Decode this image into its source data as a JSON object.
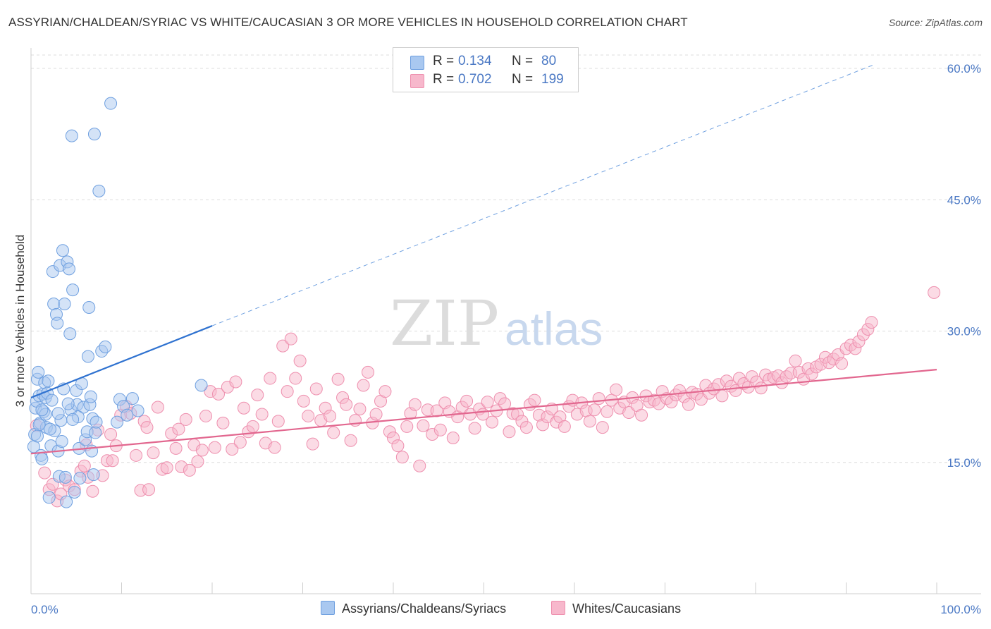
{
  "title": "ASSYRIAN/CHALDEAN/SYRIAC VS WHITE/CAUCASIAN 3 OR MORE VEHICLES IN HOUSEHOLD CORRELATION CHART",
  "source": "Source: ZipAtlas.com",
  "watermark": {
    "zip": "ZIP",
    "atlas": "atlas"
  },
  "legend": {
    "rows": [
      {
        "r_label": "R =",
        "r_value": "0.134",
        "n_label": "N =",
        "n_value": "80",
        "color": "#a9c8f0"
      },
      {
        "r_label": "R =",
        "r_value": "0.702",
        "n_label": "N =",
        "n_value": "199",
        "color": "#f7b8cc"
      }
    ]
  },
  "bottom_legend": [
    {
      "label": "Assyrians/Chaldeans/Syriacs",
      "color": "#a9c8f0"
    },
    {
      "label": "Whites/Caucasians",
      "color": "#f7b8cc"
    }
  ],
  "chart_data": {
    "type": "scatter",
    "xlabel": "",
    "ylabel": "3 or more Vehicles in Household",
    "xlim": [
      0,
      100
    ],
    "ylim": [
      0,
      63
    ],
    "x_tick_labels": [
      {
        "value": 0,
        "label": "0.0%"
      },
      {
        "value": 100,
        "label": "100.0%"
      }
    ],
    "y_ticks": [
      {
        "value": 15,
        "label": "15.0%"
      },
      {
        "value": 30,
        "label": "30.0%"
      },
      {
        "value": 45,
        "label": "45.0%"
      },
      {
        "value": 60,
        "label": "60.0%"
      }
    ],
    "grid": "horizontal dashed",
    "legend_position": "top-center",
    "series": [
      {
        "color": "#6fa0e0",
        "fill": "#a9c8f0",
        "trend": {
          "x": [
            0,
            20
          ],
          "y": [
            22.4,
            30.6
          ],
          "extend_dashed_to": [
            93,
            60.4
          ]
        },
        "points": [
          [
            0.3,
            16.8
          ],
          [
            0.5,
            21.2
          ],
          [
            0.6,
            22.0
          ],
          [
            0.7,
            24.5
          ],
          [
            0.8,
            25.3
          ],
          [
            0.9,
            22.6
          ],
          [
            1.0,
            19.5
          ],
          [
            1.1,
            15.8
          ],
          [
            1.2,
            15.4
          ],
          [
            1.3,
            22.8
          ],
          [
            1.4,
            20.8
          ],
          [
            1.5,
            24.1
          ],
          [
            1.6,
            22.4
          ],
          [
            1.7,
            19.0
          ],
          [
            1.8,
            22.9
          ],
          [
            2.0,
            11.0
          ],
          [
            2.2,
            16.9
          ],
          [
            2.4,
            36.8
          ],
          [
            2.5,
            33.1
          ],
          [
            2.6,
            18.6
          ],
          [
            2.8,
            31.9
          ],
          [
            2.9,
            30.9
          ],
          [
            3.0,
            16.3
          ],
          [
            3.1,
            13.4
          ],
          [
            3.2,
            37.5
          ],
          [
            3.3,
            19.8
          ],
          [
            3.5,
            39.2
          ],
          [
            3.6,
            23.4
          ],
          [
            3.7,
            33.1
          ],
          [
            3.8,
            13.3
          ],
          [
            3.9,
            10.5
          ],
          [
            4.0,
            37.9
          ],
          [
            4.2,
            37.1
          ],
          [
            4.3,
            29.7
          ],
          [
            4.4,
            21.0
          ],
          [
            4.5,
            52.3
          ],
          [
            4.6,
            34.7
          ],
          [
            4.8,
            11.6
          ],
          [
            5.0,
            23.2
          ],
          [
            5.1,
            21.6
          ],
          [
            5.3,
            16.6
          ],
          [
            5.4,
            13.2
          ],
          [
            5.6,
            24.0
          ],
          [
            5.8,
            21.3
          ],
          [
            6.0,
            17.6
          ],
          [
            6.2,
            18.5
          ],
          [
            6.3,
            27.1
          ],
          [
            6.4,
            32.7
          ],
          [
            6.5,
            21.6
          ],
          [
            6.7,
            16.3
          ],
          [
            6.8,
            20.0
          ],
          [
            6.9,
            13.6
          ],
          [
            7.0,
            52.5
          ],
          [
            7.1,
            18.4
          ],
          [
            7.2,
            19.6
          ],
          [
            7.5,
            46.0
          ],
          [
            7.8,
            27.7
          ],
          [
            8.2,
            28.2
          ],
          [
            8.8,
            56.0
          ],
          [
            9.5,
            19.6
          ],
          [
            9.8,
            22.2
          ],
          [
            10.2,
            21.4
          ],
          [
            10.6,
            20.4
          ],
          [
            11.2,
            22.3
          ],
          [
            11.8,
            20.9
          ],
          [
            0.4,
            18.2
          ],
          [
            0.9,
            19.3
          ],
          [
            1.6,
            20.5
          ],
          [
            2.3,
            22.1
          ],
          [
            3.4,
            17.4
          ],
          [
            4.1,
            21.7
          ],
          [
            2.1,
            18.8
          ],
          [
            1.2,
            21.0
          ],
          [
            5.2,
            20.2
          ],
          [
            6.6,
            22.5
          ],
          [
            0.7,
            18.0
          ],
          [
            1.9,
            24.3
          ],
          [
            3.0,
            20.6
          ],
          [
            4.6,
            19.9
          ],
          [
            18.8,
            23.8
          ]
        ]
      },
      {
        "color": "#ee8fae",
        "fill": "#f7b8cc",
        "trend": {
          "x": [
            0,
            100
          ],
          "y": [
            16.0,
            25.6
          ]
        },
        "points": [
          [
            0.6,
            19.2
          ],
          [
            1.5,
            13.8
          ],
          [
            2.0,
            11.9
          ],
          [
            2.4,
            12.5
          ],
          [
            2.9,
            10.6
          ],
          [
            3.3,
            11.4
          ],
          [
            3.8,
            13.0
          ],
          [
            4.2,
            12.3
          ],
          [
            4.8,
            11.9
          ],
          [
            5.5,
            14.0
          ],
          [
            5.9,
            14.6
          ],
          [
            6.3,
            13.3
          ],
          [
            6.8,
            11.7
          ],
          [
            7.4,
            18.7
          ],
          [
            7.9,
            13.5
          ],
          [
            8.4,
            15.2
          ],
          [
            9.0,
            15.2
          ],
          [
            9.4,
            16.9
          ],
          [
            9.9,
            20.4
          ],
          [
            10.5,
            21.4
          ],
          [
            11.0,
            20.6
          ],
          [
            11.6,
            15.8
          ],
          [
            12.1,
            11.8
          ],
          [
            12.5,
            19.7
          ],
          [
            13.0,
            11.9
          ],
          [
            13.5,
            16.1
          ],
          [
            14.0,
            21.3
          ],
          [
            14.5,
            14.2
          ],
          [
            15.0,
            14.4
          ],
          [
            15.5,
            18.3
          ],
          [
            16.0,
            16.6
          ],
          [
            16.6,
            14.5
          ],
          [
            17.1,
            19.9
          ],
          [
            17.5,
            14.1
          ],
          [
            18.0,
            17.0
          ],
          [
            18.4,
            15.1
          ],
          [
            18.9,
            16.4
          ],
          [
            19.3,
            20.3
          ],
          [
            19.8,
            23.1
          ],
          [
            20.3,
            16.7
          ],
          [
            20.7,
            22.8
          ],
          [
            21.2,
            19.5
          ],
          [
            21.7,
            23.6
          ],
          [
            22.2,
            16.5
          ],
          [
            22.6,
            24.2
          ],
          [
            23.1,
            17.3
          ],
          [
            23.5,
            21.2
          ],
          [
            24.0,
            18.5
          ],
          [
            24.5,
            19.1
          ],
          [
            25.0,
            22.7
          ],
          [
            25.5,
            20.5
          ],
          [
            25.9,
            17.2
          ],
          [
            26.4,
            24.6
          ],
          [
            26.9,
            16.7
          ],
          [
            27.3,
            19.7
          ],
          [
            27.8,
            28.3
          ],
          [
            28.3,
            23.1
          ],
          [
            28.7,
            29.1
          ],
          [
            29.2,
            24.6
          ],
          [
            29.7,
            26.6
          ],
          [
            30.1,
            22.0
          ],
          [
            30.6,
            20.3
          ],
          [
            31.1,
            17.1
          ],
          [
            31.5,
            23.4
          ],
          [
            32.0,
            19.8
          ],
          [
            32.5,
            21.2
          ],
          [
            33.0,
            20.3
          ],
          [
            33.4,
            18.4
          ],
          [
            33.9,
            24.5
          ],
          [
            34.4,
            22.4
          ],
          [
            34.8,
            21.6
          ],
          [
            35.3,
            17.5
          ],
          [
            35.8,
            19.8
          ],
          [
            36.3,
            21.1
          ],
          [
            36.7,
            23.8
          ],
          [
            37.2,
            25.3
          ],
          [
            37.7,
            19.5
          ],
          [
            38.1,
            20.5
          ],
          [
            38.6,
            22.0
          ],
          [
            39.1,
            23.1
          ],
          [
            39.6,
            18.5
          ],
          [
            40.0,
            17.8
          ],
          [
            40.5,
            16.9
          ],
          [
            41.0,
            15.6
          ],
          [
            41.5,
            19.1
          ],
          [
            41.9,
            20.6
          ],
          [
            42.4,
            21.6
          ],
          [
            42.9,
            14.6
          ],
          [
            43.3,
            19.2
          ],
          [
            43.8,
            21.0
          ],
          [
            44.3,
            18.2
          ],
          [
            44.8,
            20.9
          ],
          [
            45.2,
            18.7
          ],
          [
            45.7,
            21.8
          ],
          [
            46.2,
            20.8
          ],
          [
            46.6,
            17.8
          ],
          [
            47.1,
            20.2
          ],
          [
            47.6,
            21.3
          ],
          [
            48.1,
            22.0
          ],
          [
            48.5,
            20.5
          ],
          [
            49.0,
            18.9
          ],
          [
            49.5,
            21.1
          ],
          [
            49.9,
            20.5
          ],
          [
            50.4,
            21.9
          ],
          [
            50.9,
            19.6
          ],
          [
            51.4,
            20.9
          ],
          [
            51.8,
            22.3
          ],
          [
            52.3,
            21.7
          ],
          [
            52.8,
            18.5
          ],
          [
            53.2,
            20.6
          ],
          [
            53.7,
            20.5
          ],
          [
            54.2,
            19.7
          ],
          [
            54.7,
            19.0
          ],
          [
            55.1,
            21.6
          ],
          [
            55.6,
            22.1
          ],
          [
            56.1,
            20.4
          ],
          [
            56.5,
            19.3
          ],
          [
            57.0,
            20.2
          ],
          [
            57.5,
            21.1
          ],
          [
            58.0,
            19.6
          ],
          [
            58.4,
            20.2
          ],
          [
            58.9,
            19.1
          ],
          [
            59.4,
            21.4
          ],
          [
            59.8,
            22.1
          ],
          [
            60.3,
            20.5
          ],
          [
            60.8,
            21.8
          ],
          [
            61.3,
            20.9
          ],
          [
            61.7,
            19.7
          ],
          [
            62.2,
            21.0
          ],
          [
            62.7,
            22.3
          ],
          [
            63.1,
            19.0
          ],
          [
            63.6,
            20.8
          ],
          [
            64.1,
            22.1
          ],
          [
            64.6,
            23.3
          ],
          [
            65.0,
            21.2
          ],
          [
            65.5,
            21.9
          ],
          [
            66.0,
            20.7
          ],
          [
            66.4,
            22.4
          ],
          [
            66.9,
            21.5
          ],
          [
            67.4,
            20.4
          ],
          [
            67.9,
            22.6
          ],
          [
            68.3,
            21.9
          ],
          [
            68.8,
            22.1
          ],
          [
            69.3,
            21.7
          ],
          [
            69.7,
            23.1
          ],
          [
            70.2,
            22.3
          ],
          [
            70.7,
            21.9
          ],
          [
            71.2,
            22.7
          ],
          [
            71.6,
            23.2
          ],
          [
            72.1,
            22.5
          ],
          [
            72.6,
            21.6
          ],
          [
            73.0,
            23.0
          ],
          [
            73.5,
            22.8
          ],
          [
            74.0,
            22.2
          ],
          [
            74.5,
            23.8
          ],
          [
            74.9,
            22.9
          ],
          [
            75.4,
            23.4
          ],
          [
            75.9,
            23.9
          ],
          [
            76.3,
            22.6
          ],
          [
            76.8,
            24.3
          ],
          [
            77.3,
            23.7
          ],
          [
            77.8,
            23.2
          ],
          [
            78.2,
            24.6
          ],
          [
            78.7,
            24.0
          ],
          [
            79.2,
            23.6
          ],
          [
            79.6,
            24.8
          ],
          [
            80.1,
            24.2
          ],
          [
            80.6,
            23.5
          ],
          [
            81.1,
            25.0
          ],
          [
            81.5,
            24.5
          ],
          [
            82.0,
            24.7
          ],
          [
            82.5,
            24.9
          ],
          [
            82.9,
            24.1
          ],
          [
            83.4,
            24.8
          ],
          [
            83.9,
            25.2
          ],
          [
            84.4,
            26.6
          ],
          [
            84.8,
            25.3
          ],
          [
            85.3,
            24.5
          ],
          [
            85.8,
            25.7
          ],
          [
            86.2,
            25.1
          ],
          [
            86.7,
            25.9
          ],
          [
            87.2,
            26.2
          ],
          [
            87.7,
            27.0
          ],
          [
            88.1,
            26.4
          ],
          [
            88.6,
            26.8
          ],
          [
            89.1,
            27.3
          ],
          [
            89.5,
            26.3
          ],
          [
            90.0,
            28.0
          ],
          [
            90.5,
            28.4
          ],
          [
            91.0,
            28.0
          ],
          [
            91.4,
            28.8
          ],
          [
            91.9,
            29.6
          ],
          [
            92.4,
            30.2
          ],
          [
            92.8,
            31.0
          ],
          [
            99.7,
            34.4
          ],
          [
            6.1,
            17.0
          ],
          [
            8.8,
            18.2
          ],
          [
            12.8,
            19.0
          ],
          [
            16.3,
            18.8
          ]
        ]
      }
    ]
  }
}
